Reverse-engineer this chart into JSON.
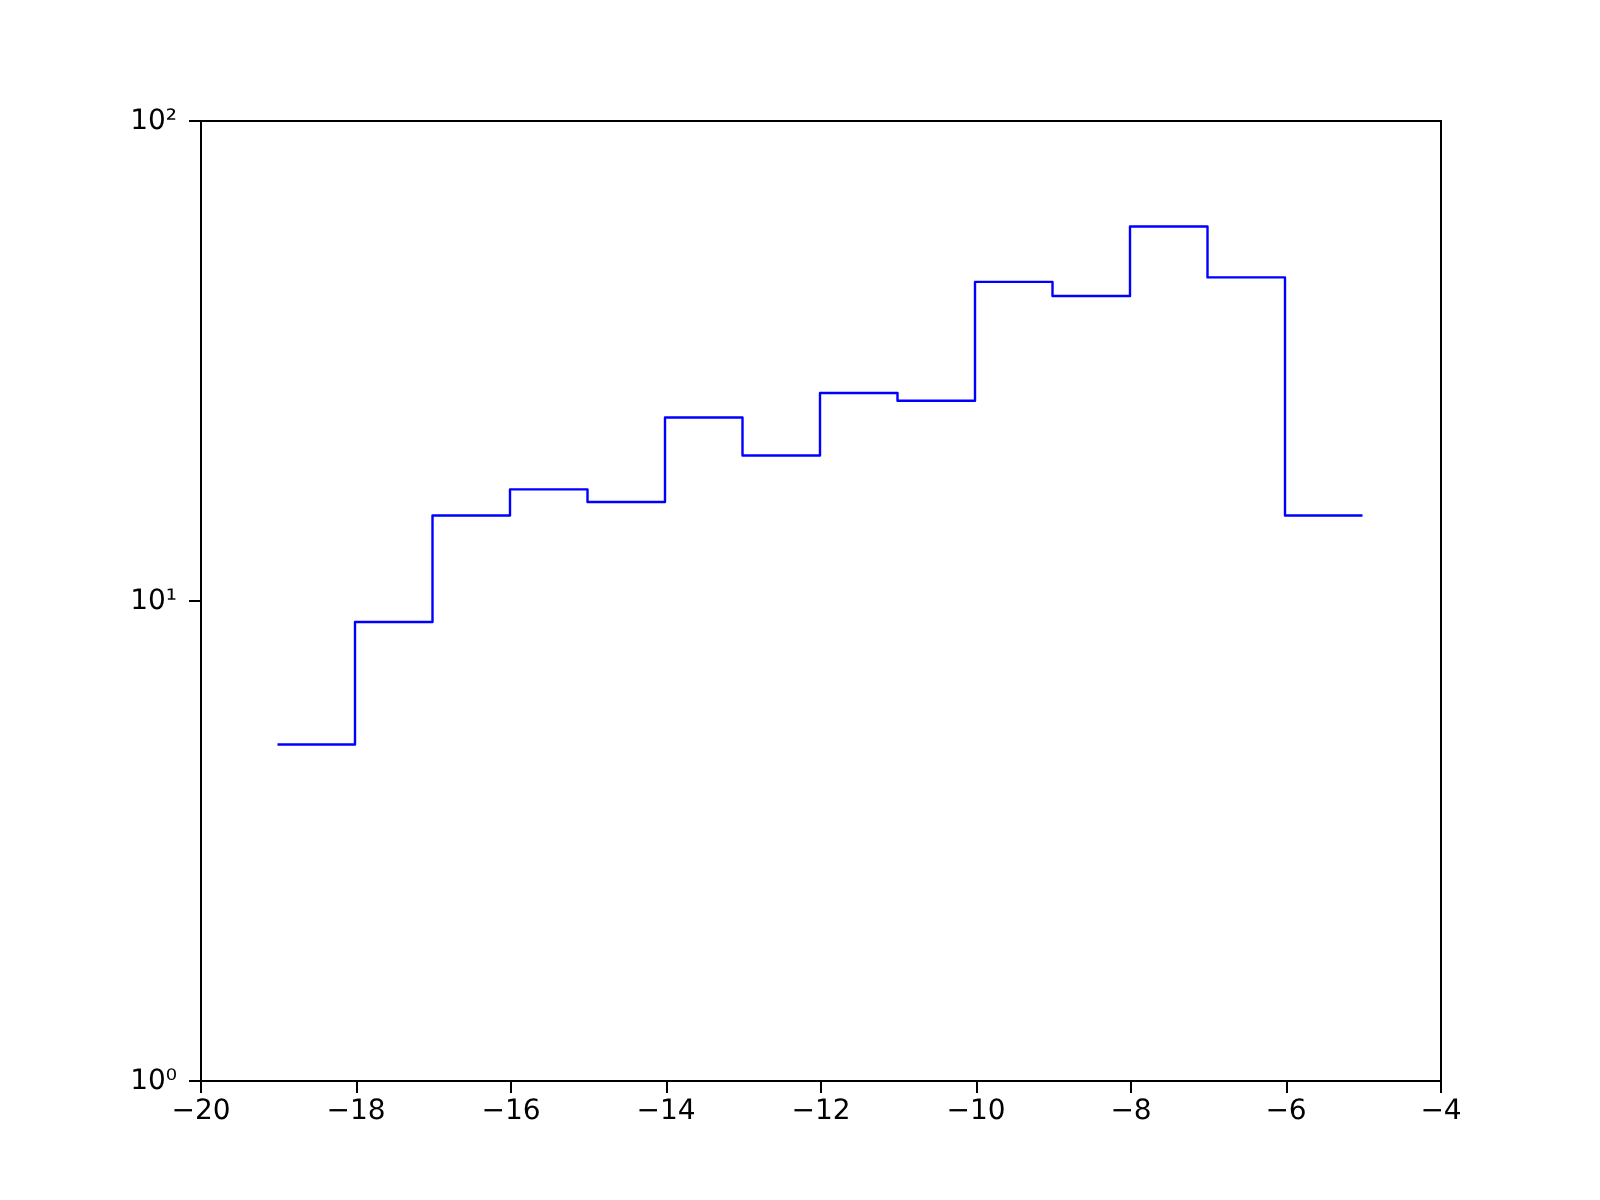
{
  "chart_data": {
    "type": "histogram",
    "bins": [
      -19,
      -18,
      -17,
      -16,
      -15,
      -14,
      -13,
      -12,
      -11,
      -10,
      -9,
      -8,
      -7,
      -6,
      -5
    ],
    "values": [
      5,
      9,
      15,
      17,
      16,
      24,
      20,
      27,
      26,
      46,
      43,
      60,
      47,
      15
    ],
    "color": "#0000ff",
    "log": "y",
    "grid": false,
    "xlim": [
      -20,
      -4
    ],
    "xticks": [
      -20,
      -18,
      -16,
      -14,
      -12,
      -10,
      -8,
      -6,
      -4
    ],
    "ylim": [
      1,
      100
    ],
    "yticks": [
      {
        "value": 1,
        "label": "10⁰"
      },
      {
        "value": 10,
        "label": "10¹"
      },
      {
        "value": 100,
        "label": "10²"
      }
    ]
  }
}
